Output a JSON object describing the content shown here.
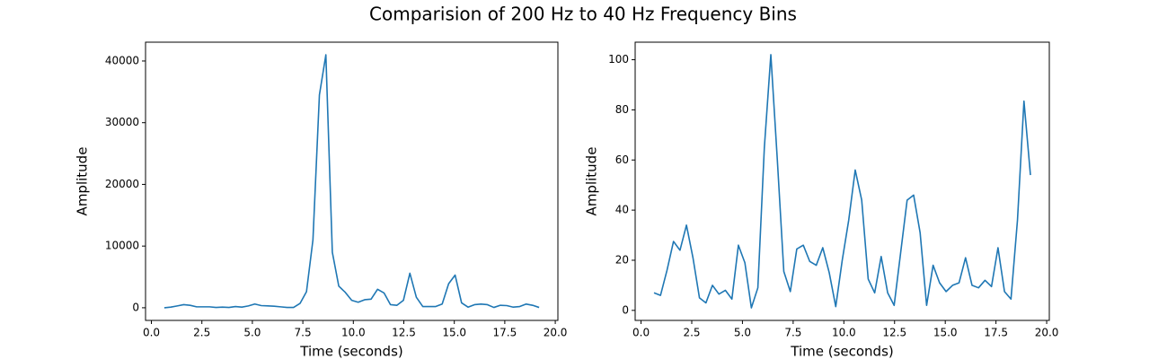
{
  "title": "Comparision of 200 Hz to 40 Hz Frequency Bins",
  "chart_data": [
    {
      "type": "line",
      "xlabel": "Time (seconds)",
      "ylabel": "Amplitude",
      "x": [
        0.64,
        0.96,
        1.28,
        1.6,
        1.92,
        2.24,
        2.56,
        2.88,
        3.2,
        3.52,
        3.84,
        4.16,
        4.48,
        4.8,
        5.12,
        5.44,
        5.76,
        6.08,
        6.4,
        6.72,
        7.04,
        7.36,
        7.68,
        8.0,
        8.32,
        8.64,
        8.96,
        9.28,
        9.6,
        9.92,
        10.24,
        10.56,
        10.88,
        11.2,
        11.52,
        11.84,
        12.16,
        12.48,
        12.8,
        13.12,
        13.44,
        13.76,
        14.08,
        14.4,
        14.72,
        15.04,
        15.36,
        15.68,
        16.0,
        16.32,
        16.64,
        16.96,
        17.28,
        17.6,
        17.92,
        18.24,
        18.56,
        18.88,
        19.2
      ],
      "series": [
        {
          "color": "#1f77b4",
          "values": [
            0,
            100,
            300,
            500,
            400,
            150,
            150,
            150,
            50,
            100,
            50,
            200,
            100,
            300,
            600,
            350,
            300,
            250,
            150,
            50,
            50,
            700,
            2600,
            11000,
            34500,
            41000,
            9000,
            3500,
            2500,
            1200,
            900,
            1300,
            1400,
            3000,
            2400,
            500,
            400,
            1200,
            5600,
            1700,
            200,
            200,
            200,
            600,
            3900,
            5300,
            800,
            100,
            500,
            600,
            500,
            50,
            400,
            350,
            100,
            200,
            600,
            400,
            50
          ]
        }
      ],
      "xlim": [
        -0.29,
        20.13
      ],
      "xticks": [
        {
          "value": 0,
          "label": "0.0"
        },
        2.5,
        {
          "value": 5,
          "label": "5.0"
        },
        7.5,
        {
          "value": 10,
          "label": "10.0"
        },
        12.5,
        {
          "value": 15,
          "label": "15.0"
        },
        17.5,
        {
          "value": 20,
          "label": "20.0"
        }
      ],
      "ylim": [
        -2050,
        43050
      ],
      "yticks": [
        0,
        10000,
        20000,
        30000,
        40000
      ]
    },
    {
      "type": "line",
      "xlabel": "Time (seconds)",
      "ylabel": "Amplitude",
      "x": [
        0.64,
        0.96,
        1.28,
        1.6,
        1.92,
        2.24,
        2.56,
        2.88,
        3.2,
        3.52,
        3.84,
        4.16,
        4.48,
        4.8,
        5.12,
        5.44,
        5.76,
        6.08,
        6.4,
        6.72,
        7.04,
        7.36,
        7.68,
        8.0,
        8.32,
        8.64,
        8.96,
        9.28,
        9.6,
        9.92,
        10.24,
        10.56,
        10.88,
        11.2,
        11.52,
        11.84,
        12.16,
        12.48,
        12.8,
        13.12,
        13.44,
        13.76,
        14.08,
        14.4,
        14.72,
        15.04,
        15.36,
        15.68,
        16.0,
        16.32,
        16.64,
        16.96,
        17.28,
        17.6,
        17.92,
        18.24,
        18.56,
        18.88,
        19.2
      ],
      "series": [
        {
          "color": "#1f77b4",
          "values": [
            7,
            6,
            16,
            27.5,
            24,
            34,
            21,
            5,
            3,
            10,
            6.5,
            8,
            4.5,
            26,
            19,
            1,
            9,
            65,
            102,
            60,
            15.5,
            7.5,
            24.5,
            26,
            19.5,
            18,
            25,
            15,
            1.5,
            20,
            36,
            56,
            44,
            12.5,
            7,
            21.5,
            7,
            2,
            23,
            44,
            46,
            31,
            2,
            18,
            11,
            7.5,
            10,
            11,
            21,
            10,
            9,
            12,
            9.5,
            25,
            7.5,
            4.5,
            36,
            83.5,
            54
          ]
        }
      ],
      "xlim": [
        -0.29,
        20.13
      ],
      "xticks": [
        {
          "value": 0,
          "label": "0.0"
        },
        2.5,
        {
          "value": 5,
          "label": "5.0"
        },
        7.5,
        {
          "value": 10,
          "label": "10.0"
        },
        12.5,
        {
          "value": 15,
          "label": "15.0"
        },
        17.5,
        {
          "value": 20,
          "label": "20.0"
        }
      ],
      "ylim": [
        -4,
        107
      ],
      "yticks": [
        0,
        20,
        40,
        60,
        80,
        100
      ]
    }
  ]
}
